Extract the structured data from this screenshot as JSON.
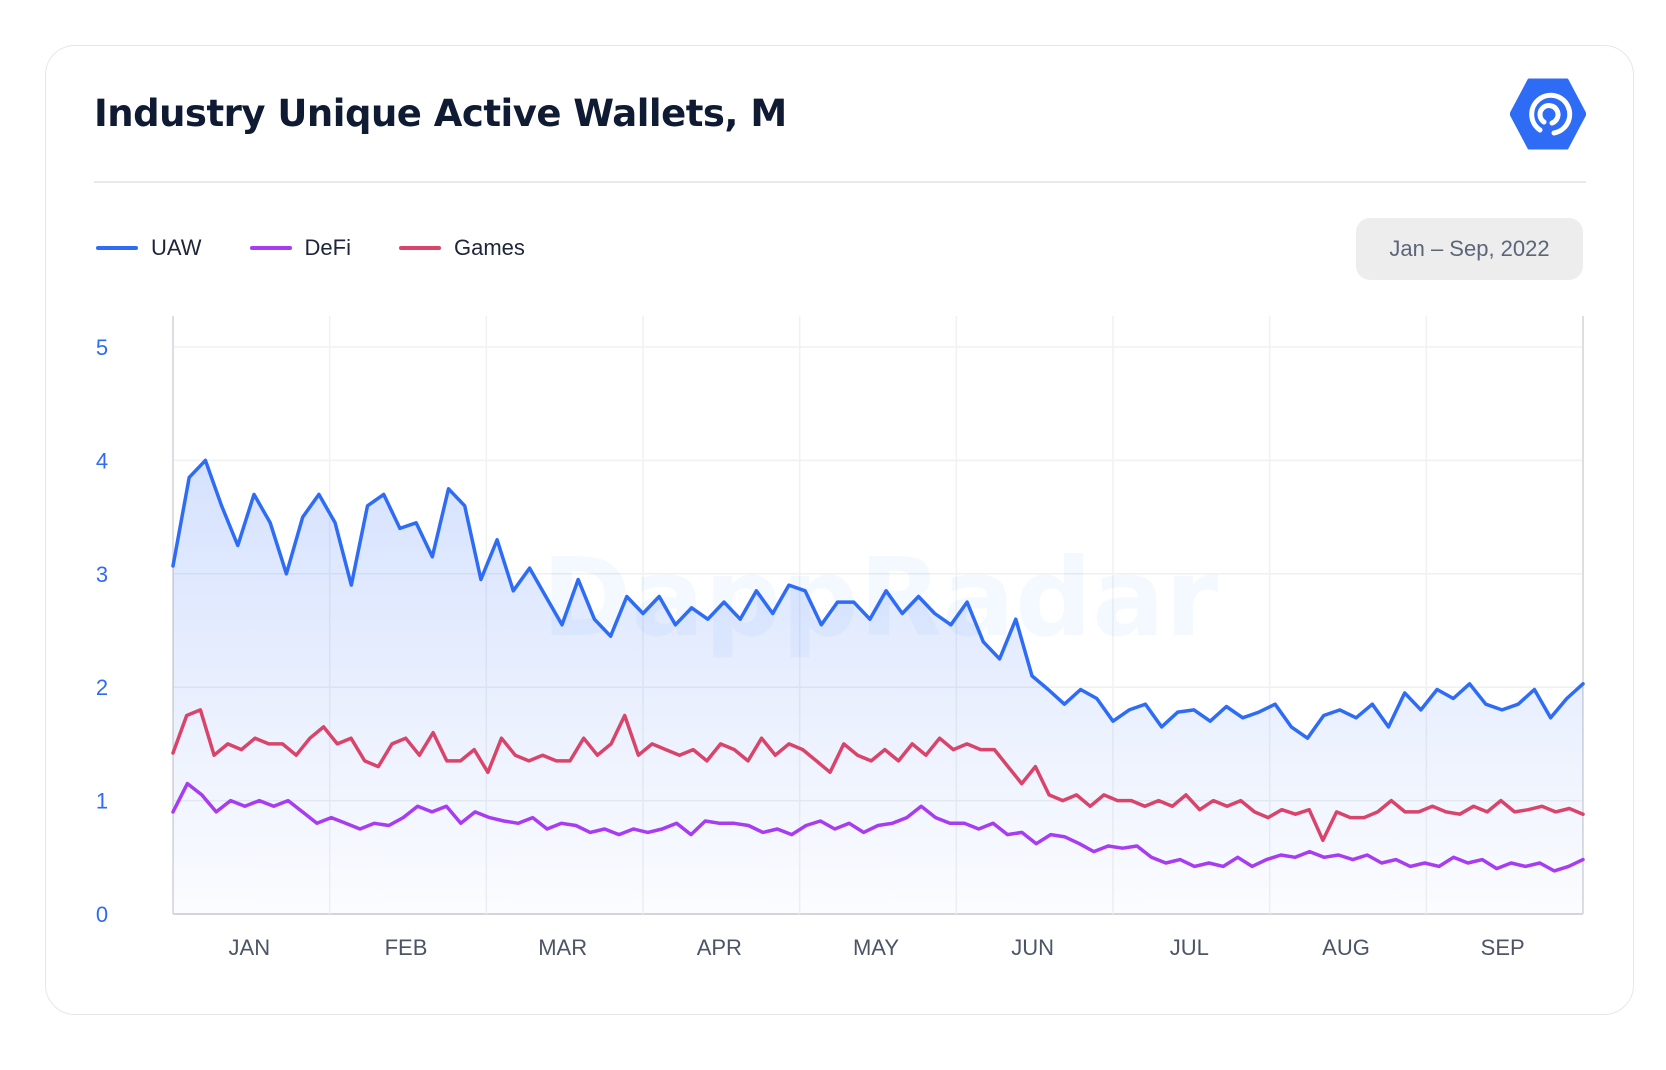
{
  "header": {
    "title": "Industry Unique Active Wallets, M",
    "logo_icon": "dappradar-logo-icon",
    "date_range": "Jan – Sep, 2022"
  },
  "watermark": "DappRadar",
  "colors": {
    "uaw": "#2f6cf6",
    "defi": "#a73cf0",
    "games": "#d9446a",
    "axis_label": "#2f6cf6",
    "month_label": "#4c5566"
  },
  "chart_data": {
    "type": "line",
    "title": "Industry Unique Active Wallets, M",
    "xlabel": "",
    "ylabel": "",
    "ylim": [
      0,
      5
    ],
    "yticks": [
      "0",
      "1",
      "2",
      "3",
      "4",
      "5"
    ],
    "x_ticks": [
      "JAN",
      "FEB",
      "MAR",
      "APR",
      "MAY",
      "JUN",
      "JUL",
      "AUG",
      "SEP"
    ],
    "x_range": "Jan 1 – Sep 30, 2022",
    "grid": true,
    "legend_position": "top-left",
    "series": [
      {
        "name": "UAW",
        "color": "#2f6cf6",
        "fill": true,
        "values": [
          3.07,
          3.85,
          4.0,
          3.6,
          3.25,
          3.7,
          3.45,
          3.0,
          3.5,
          3.7,
          3.45,
          2.9,
          3.6,
          3.7,
          3.4,
          3.45,
          3.15,
          3.75,
          3.6,
          2.95,
          3.3,
          2.85,
          3.05,
          2.8,
          2.55,
          2.95,
          2.6,
          2.45,
          2.8,
          2.65,
          2.8,
          2.55,
          2.7,
          2.6,
          2.75,
          2.6,
          2.85,
          2.65,
          2.9,
          2.85,
          2.55,
          2.75,
          2.75,
          2.6,
          2.85,
          2.65,
          2.8,
          2.65,
          2.55,
          2.75,
          2.4,
          2.25,
          2.6,
          2.1,
          1.98,
          1.85,
          1.98,
          1.9,
          1.7,
          1.8,
          1.85,
          1.65,
          1.78,
          1.8,
          1.7,
          1.83,
          1.73,
          1.78,
          1.85,
          1.65,
          1.55,
          1.75,
          1.8,
          1.73,
          1.85,
          1.65,
          1.95,
          1.8,
          1.98,
          1.9,
          2.03,
          1.85,
          1.8,
          1.85,
          1.98,
          1.73,
          1.9,
          2.03
        ]
      },
      {
        "name": "DeFi",
        "color": "#a73cf0",
        "fill": false,
        "values": [
          0.9,
          1.15,
          1.05,
          0.9,
          1.0,
          0.95,
          1.0,
          0.95,
          1.0,
          0.9,
          0.8,
          0.85,
          0.8,
          0.75,
          0.8,
          0.78,
          0.85,
          0.95,
          0.9,
          0.95,
          0.8,
          0.9,
          0.85,
          0.82,
          0.8,
          0.85,
          0.75,
          0.8,
          0.78,
          0.72,
          0.75,
          0.7,
          0.75,
          0.72,
          0.75,
          0.8,
          0.7,
          0.82,
          0.8,
          0.8,
          0.78,
          0.72,
          0.75,
          0.7,
          0.78,
          0.82,
          0.75,
          0.8,
          0.72,
          0.78,
          0.8,
          0.85,
          0.95,
          0.85,
          0.8,
          0.8,
          0.75,
          0.8,
          0.7,
          0.72,
          0.62,
          0.7,
          0.68,
          0.62,
          0.55,
          0.6,
          0.58,
          0.6,
          0.5,
          0.45,
          0.48,
          0.42,
          0.45,
          0.42,
          0.5,
          0.42,
          0.48,
          0.52,
          0.5,
          0.55,
          0.5,
          0.52,
          0.48,
          0.52,
          0.45,
          0.48,
          0.42,
          0.45,
          0.42,
          0.5,
          0.45,
          0.48,
          0.4,
          0.45,
          0.42,
          0.45,
          0.38,
          0.42,
          0.48
        ]
      },
      {
        "name": "Games",
        "color": "#d9446a",
        "fill": false,
        "values": [
          1.42,
          1.75,
          1.8,
          1.4,
          1.5,
          1.45,
          1.55,
          1.5,
          1.5,
          1.4,
          1.55,
          1.65,
          1.5,
          1.55,
          1.35,
          1.3,
          1.5,
          1.55,
          1.4,
          1.6,
          1.35,
          1.35,
          1.45,
          1.25,
          1.55,
          1.4,
          1.35,
          1.4,
          1.35,
          1.35,
          1.55,
          1.4,
          1.5,
          1.75,
          1.4,
          1.5,
          1.45,
          1.4,
          1.45,
          1.35,
          1.5,
          1.45,
          1.35,
          1.55,
          1.4,
          1.5,
          1.45,
          1.35,
          1.25,
          1.5,
          1.4,
          1.35,
          1.45,
          1.35,
          1.5,
          1.4,
          1.55,
          1.45,
          1.5,
          1.45,
          1.45,
          1.3,
          1.15,
          1.3,
          1.05,
          1.0,
          1.05,
          0.95,
          1.05,
          1.0,
          1.0,
          0.95,
          1.0,
          0.95,
          1.05,
          0.92,
          1.0,
          0.95,
          1.0,
          0.9,
          0.85,
          0.92,
          0.88,
          0.92,
          0.65,
          0.9,
          0.85,
          0.85,
          0.9,
          1.0,
          0.9,
          0.9,
          0.95,
          0.9,
          0.88,
          0.95,
          0.9,
          1.0,
          0.9,
          0.92,
          0.95,
          0.9,
          0.93,
          0.88
        ]
      }
    ]
  }
}
